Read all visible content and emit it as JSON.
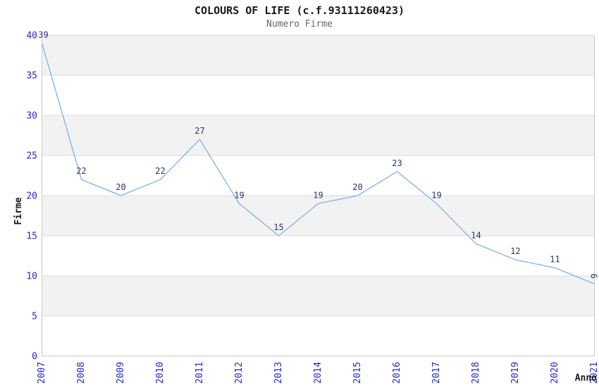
{
  "chart_data": {
    "type": "line",
    "title": "COLOURS OF LIFE (c.f.93111260423)",
    "subtitle": "Numero Firme",
    "xlabel": "Anno",
    "ylabel": "Firme",
    "categories": [
      "2007",
      "2008",
      "2009",
      "2010",
      "2011",
      "2012",
      "2013",
      "2014",
      "2015",
      "2016",
      "2017",
      "2018",
      "2019",
      "2020",
      "2021"
    ],
    "values": [
      39,
      22,
      20,
      22,
      27,
      19,
      15,
      19,
      20,
      23,
      19,
      14,
      12,
      11,
      9
    ],
    "ylim": [
      0,
      40
    ],
    "ytick_step": 5,
    "grid": "horizontal-bands-alternating",
    "legend": "none",
    "point_labels": true
  },
  "colors": {
    "band": "#f2f2f2",
    "gridline": "#dedede",
    "frame": "#c9c9c9",
    "line": "#7fb1e8",
    "tick_label": "#2626d6",
    "point_label": "#32326c",
    "title": "#1a1a1a",
    "subtitle": "#666666"
  }
}
